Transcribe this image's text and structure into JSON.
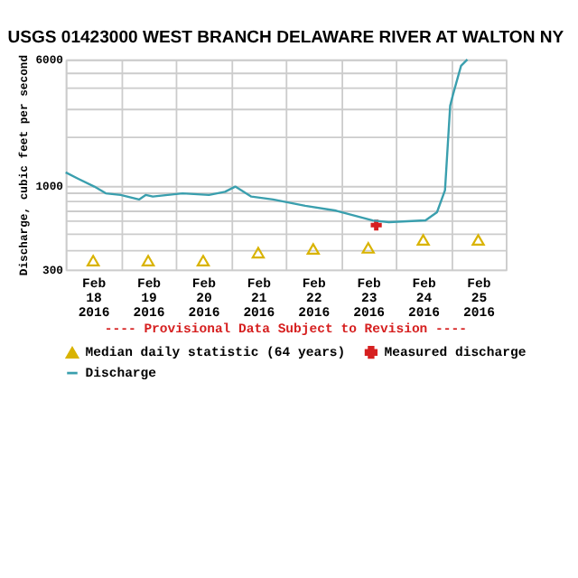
{
  "chart_data": {
    "type": "line",
    "title": "USGS 01423000 WEST BRANCH DELAWARE RIVER AT WALTON NY",
    "ylabel": "Discharge, cubic feet per second",
    "annotations": [
      "---- Provisional Data Subject to Revision ----"
    ],
    "log": "y",
    "grid": true,
    "legend": "bottom",
    "xlim": [
      "2016-02-18",
      "2016-02-26"
    ],
    "xticks": [
      {
        "value": "2016-02-18T00:00",
        "label": null
      },
      {
        "value": "2016-02-18T12:00",
        "label": "Feb 18 2016"
      },
      {
        "value": "2016-02-19T00:00",
        "label": null
      },
      {
        "value": "2016-02-19T12:00",
        "label": "Feb 19 2016"
      },
      {
        "value": "2016-02-20T00:00",
        "label": null
      },
      {
        "value": "2016-02-20T12:00",
        "label": "Feb 20 2016"
      },
      {
        "value": "2016-02-21T00:00",
        "label": null
      },
      {
        "value": "2016-02-21T12:00",
        "label": "Feb 21 2016"
      },
      {
        "value": "2016-02-22T00:00",
        "label": null
      },
      {
        "value": "2016-02-22T12:00",
        "label": "Feb 22 2016"
      },
      {
        "value": "2016-02-23T00:00",
        "label": null
      },
      {
        "value": "2016-02-23T12:00",
        "label": "Feb 23 2016"
      },
      {
        "value": "2016-02-24T00:00",
        "label": null
      },
      {
        "value": "2016-02-24T12:00",
        "label": "Feb 24 2016"
      },
      {
        "value": "2016-02-25T00:00",
        "label": null
      },
      {
        "value": "2016-02-25T12:00",
        "label": "Feb 25 2016"
      },
      {
        "value": "2016-02-26T00:00",
        "label": null
      }
    ],
    "ylim": [
      300,
      6000
    ],
    "yticks": [
      300,
      {
        "value": 400,
        "label": null
      },
      {
        "value": 500,
        "label": null
      },
      {
        "value": 600,
        "label": null
      },
      {
        "value": 700,
        "label": null
      },
      {
        "value": 800,
        "label": null
      },
      {
        "value": 900,
        "label": null
      },
      1000,
      {
        "value": 2000,
        "label": null
      },
      {
        "value": 3000,
        "label": null
      },
      {
        "value": 4000,
        "label": null
      },
      {
        "value": 5000,
        "label": null
      },
      6000
    ],
    "series": [
      {
        "name": "Median daily statistic (64 years)",
        "type": "scatter",
        "marker": "triangle",
        "color": "#d9b300",
        "x": [
          "2016-02-18T12:00",
          "2016-02-19T12:00",
          "2016-02-20T12:00",
          "2016-02-21T12:00",
          "2016-02-22T12:00",
          "2016-02-23T12:00",
          "2016-02-24T12:00",
          "2016-02-25T12:00"
        ],
        "values": [
          341,
          341,
          341,
          382,
          403,
          409,
          458,
          458
        ]
      },
      {
        "name": "Measured discharge",
        "type": "scatter",
        "marker": "cross",
        "color": "#d62020",
        "x": [
          "2016-02-23T15:30"
        ],
        "values": [
          566
        ]
      },
      {
        "name": "Discharge",
        "type": "line",
        "marker": "none",
        "line_style": "solid",
        "color": "#3a9fae",
        "x": [
          "2016-02-18T00:00",
          "2016-02-18T05:30",
          "2016-02-18T12:30",
          "2016-02-18T17:30",
          "2016-02-19T00:00",
          "2016-02-19T08:00",
          "2016-02-19T11:00",
          "2016-02-19T14:00",
          "2016-02-20T03:00",
          "2016-02-20T14:30",
          "2016-02-20T21:30",
          "2016-02-21T02:00",
          "2016-02-21T09:00",
          "2016-02-21T18:30",
          "2016-02-22T08:30",
          "2016-02-22T22:00",
          "2016-02-23T14:00",
          "2016-02-23T21:00",
          "2016-02-24T13:00",
          "2016-02-24T18:00",
          "2016-02-24T21:30",
          "2016-02-24T23:45",
          "2016-02-25T01:00",
          "2016-02-25T04:30",
          "2016-02-25T07:15"
        ],
        "values": [
          1200,
          1095,
          980,
          890,
          870,
          815,
          870,
          850,
          890,
          870,
          910,
          980,
          850,
          815,
          745,
          695,
          605,
          590,
          605,
          680,
          930,
          3100,
          3640,
          5480,
          6000
        ]
      }
    ]
  }
}
